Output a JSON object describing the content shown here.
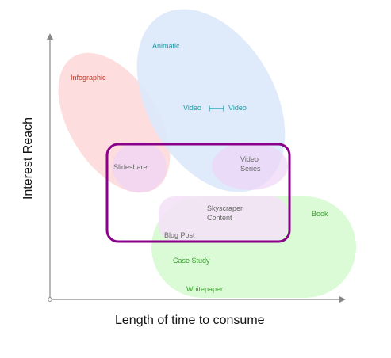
{
  "axes": {
    "x_label": "Length of time to consume",
    "y_label": "Interest Reach"
  },
  "colors": {
    "infographic_fill": "#fdd9d9",
    "animatic_fill": "#dbe9fb",
    "slideshare_fill": "#f1d6f5",
    "book_fill": "#d6fbd2",
    "highlight_stroke": "#8b008b",
    "highlight_fill": "#f5e0f8",
    "infographic_text": "#c0392b",
    "animatic_text": "#1e9aa5",
    "content_text": "#666666",
    "green_text": "#3a9e2f"
  },
  "labels": {
    "infographic": "Infographic",
    "animatic": "Animatic",
    "video_left": "Video",
    "video_right": "Video",
    "video_series_1": "Video",
    "video_series_2": "Series",
    "slideshare": "Slideshare",
    "skyscraper_1": "Skyscraper",
    "skyscraper_2": "Content",
    "blog_post": "Blog Post",
    "book": "Book",
    "case_study": "Case Study",
    "whitepaper": "Whitepaper"
  }
}
